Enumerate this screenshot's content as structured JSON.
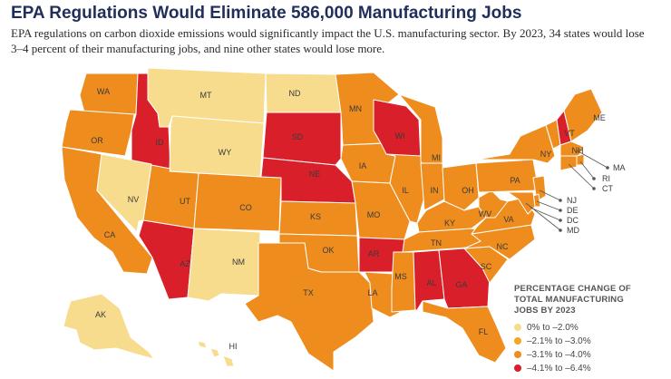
{
  "title": "EPA Regulations Would Eliminate 586,000 Manufacturing Jobs",
  "subtitle": "EPA regulations on carbon dioxide emissions would significantly impact the U.S. manufacturing sector. By 2023, 34 states would lose 3–4 percent of their manufacturing jobs, and nine other states would lose more.",
  "colors": {
    "c1": "#f6dc8c",
    "c2": "#f5a623",
    "c3": "#ee8c1d",
    "c4": "#d9202a"
  },
  "legend": {
    "title_lines": [
      "PERCENTAGE CHANGE OF",
      "TOTAL MANUFACTURING",
      "JOBS BY 2023"
    ],
    "items": [
      {
        "label": "0% to –2.0%",
        "category": "c1"
      },
      {
        "label": "–2.1% to –3.0%",
        "category": "c2"
      },
      {
        "label": "–3.1% to –4.0%",
        "category": "c3"
      },
      {
        "label": "–4.1% to –6.4%",
        "category": "c4"
      }
    ]
  },
  "states": [
    {
      "abbr": "WA",
      "category": "c3"
    },
    {
      "abbr": "OR",
      "category": "c3"
    },
    {
      "abbr": "CA",
      "category": "c3"
    },
    {
      "abbr": "ID",
      "category": "c4"
    },
    {
      "abbr": "NV",
      "category": "c1"
    },
    {
      "abbr": "MT",
      "category": "c1"
    },
    {
      "abbr": "WY",
      "category": "c1"
    },
    {
      "abbr": "UT",
      "category": "c3"
    },
    {
      "abbr": "AZ",
      "category": "c4"
    },
    {
      "abbr": "CO",
      "category": "c3"
    },
    {
      "abbr": "NM",
      "category": "c1"
    },
    {
      "abbr": "ND",
      "category": "c1"
    },
    {
      "abbr": "SD",
      "category": "c4"
    },
    {
      "abbr": "NE",
      "category": "c4"
    },
    {
      "abbr": "KS",
      "category": "c3"
    },
    {
      "abbr": "OK",
      "category": "c3"
    },
    {
      "abbr": "TX",
      "category": "c3"
    },
    {
      "abbr": "MN",
      "category": "c3"
    },
    {
      "abbr": "IA",
      "category": "c3"
    },
    {
      "abbr": "MO",
      "category": "c3"
    },
    {
      "abbr": "AR",
      "category": "c4"
    },
    {
      "abbr": "LA",
      "category": "c3"
    },
    {
      "abbr": "WI",
      "category": "c4"
    },
    {
      "abbr": "IL",
      "category": "c3"
    },
    {
      "abbr": "MI",
      "category": "c3"
    },
    {
      "abbr": "IN",
      "category": "c3"
    },
    {
      "abbr": "OH",
      "category": "c3"
    },
    {
      "abbr": "KY",
      "category": "c3"
    },
    {
      "abbr": "TN",
      "category": "c3"
    },
    {
      "abbr": "MS",
      "category": "c3"
    },
    {
      "abbr": "AL",
      "category": "c4"
    },
    {
      "abbr": "GA",
      "category": "c4"
    },
    {
      "abbr": "FL",
      "category": "c3"
    },
    {
      "abbr": "SC",
      "category": "c3"
    },
    {
      "abbr": "NC",
      "category": "c3"
    },
    {
      "abbr": "VA",
      "category": "c3"
    },
    {
      "abbr": "WV",
      "category": "c3"
    },
    {
      "abbr": "PA",
      "category": "c3"
    },
    {
      "abbr": "NY",
      "category": "c3"
    },
    {
      "abbr": "VT",
      "category": "c3"
    },
    {
      "abbr": "NH",
      "category": "c4"
    },
    {
      "abbr": "ME",
      "category": "c3"
    },
    {
      "abbr": "MA",
      "category": "c3"
    },
    {
      "abbr": "RI",
      "category": "c3"
    },
    {
      "abbr": "CT",
      "category": "c3"
    },
    {
      "abbr": "NJ",
      "category": "c3"
    },
    {
      "abbr": "DE",
      "category": "c3"
    },
    {
      "abbr": "DC",
      "category": "c3"
    },
    {
      "abbr": "MD",
      "category": "c3"
    },
    {
      "abbr": "AK",
      "category": "c1"
    },
    {
      "abbr": "HI",
      "category": "c1"
    }
  ]
}
